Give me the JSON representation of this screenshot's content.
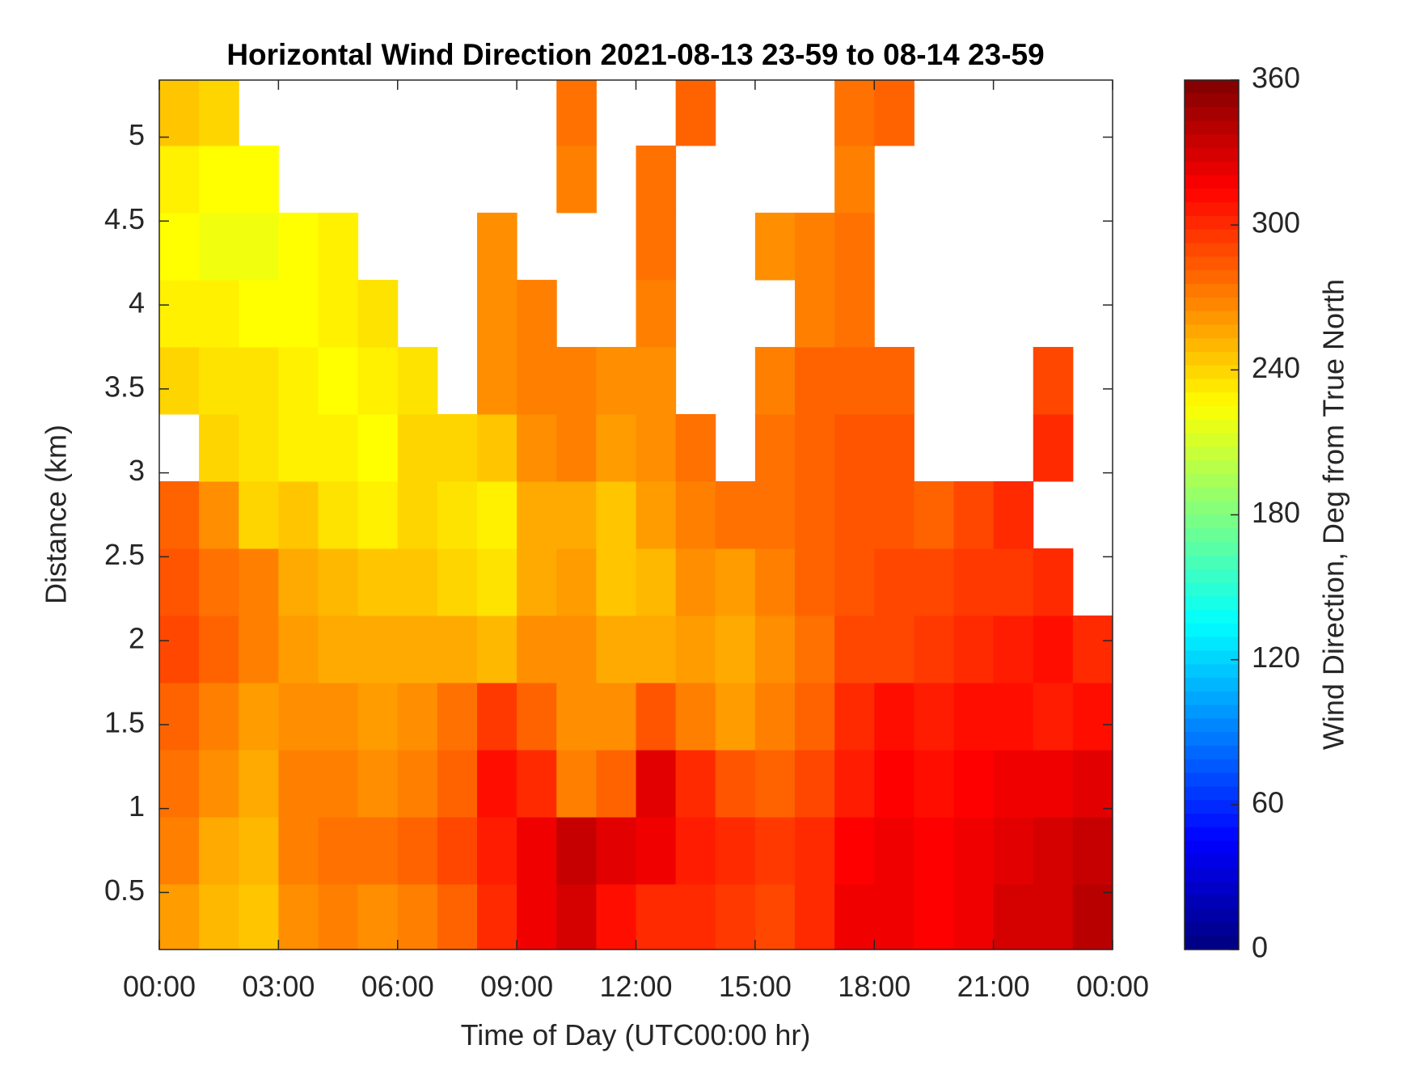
{
  "chart_data": {
    "type": "heatmap",
    "title": "Horizontal Wind Direction 2021-08-13 23-59 to 08-14 23-59",
    "x_label": "Time of Day (UTC00:00 hr)",
    "y_label": "Distance (km)",
    "colorbar_label": "Wind Direction, Deg from True North",
    "colormap": "jet",
    "x": [
      0.5,
      1.5,
      2.5,
      3.5,
      4.5,
      5.5,
      6.5,
      7.5,
      8.5,
      9.5,
      10.5,
      11.5,
      12.5,
      13.5,
      14.5,
      15.5,
      16.5,
      17.5,
      18.5,
      19.5,
      20.5,
      21.5,
      22.5,
      23.5
    ],
    "y": [
      0.35,
      0.75,
      1.15,
      1.55,
      1.95,
      2.35,
      2.75,
      3.15,
      3.55,
      3.95,
      4.35,
      4.75,
      5.15
    ],
    "values": [
      [
        260,
        250,
        245,
        265,
        270,
        265,
        270,
        280,
        300,
        320,
        330,
        310,
        300,
        300,
        295,
        290,
        300,
        320,
        320,
        315,
        320,
        330,
        330,
        340
      ],
      [
        270,
        255,
        250,
        270,
        275,
        275,
        280,
        290,
        305,
        320,
        335,
        325,
        320,
        305,
        300,
        295,
        300,
        315,
        320,
        315,
        320,
        325,
        330,
        335
      ],
      [
        275,
        265,
        255,
        270,
        270,
        265,
        270,
        280,
        310,
        300,
        270,
        280,
        325,
        300,
        285,
        280,
        290,
        305,
        315,
        310,
        315,
        320,
        320,
        325
      ],
      [
        280,
        270,
        260,
        265,
        265,
        260,
        265,
        275,
        295,
        280,
        265,
        265,
        285,
        270,
        260,
        270,
        280,
        300,
        310,
        305,
        310,
        310,
        305,
        310
      ],
      [
        290,
        280,
        270,
        260,
        255,
        255,
        255,
        255,
        250,
        265,
        265,
        255,
        255,
        260,
        255,
        265,
        275,
        290,
        290,
        295,
        300,
        305,
        310,
        300
      ],
      [
        285,
        275,
        270,
        255,
        250,
        245,
        245,
        240,
        235,
        255,
        260,
        245,
        250,
        265,
        260,
        270,
        280,
        285,
        290,
        290,
        295,
        295,
        300,
        null
      ],
      [
        280,
        265,
        240,
        245,
        235,
        230,
        240,
        235,
        230,
        255,
        255,
        245,
        260,
        270,
        275,
        275,
        280,
        285,
        285,
        280,
        290,
        300,
        null,
        null
      ],
      [
        null,
        240,
        235,
        230,
        230,
        225,
        240,
        240,
        245,
        265,
        270,
        260,
        265,
        275,
        null,
        275,
        280,
        285,
        285,
        null,
        null,
        null,
        300,
        null
      ],
      [
        240,
        235,
        235,
        230,
        225,
        230,
        235,
        null,
        265,
        270,
        270,
        265,
        265,
        null,
        null,
        270,
        280,
        280,
        280,
        null,
        null,
        null,
        290,
        null
      ],
      [
        230,
        230,
        225,
        225,
        230,
        235,
        null,
        null,
        265,
        270,
        null,
        null,
        270,
        null,
        null,
        null,
        270,
        275,
        null,
        null,
        null,
        null,
        null,
        null
      ],
      [
        225,
        220,
        220,
        225,
        230,
        null,
        null,
        null,
        265,
        null,
        null,
        null,
        275,
        null,
        null,
        265,
        270,
        275,
        null,
        null,
        null,
        null,
        null,
        null
      ],
      [
        230,
        225,
        225,
        null,
        null,
        null,
        null,
        null,
        null,
        null,
        270,
        null,
        275,
        null,
        null,
        null,
        null,
        270,
        null,
        null,
        null,
        null,
        null,
        null
      ],
      [
        245,
        240,
        null,
        null,
        null,
        null,
        null,
        null,
        null,
        null,
        275,
        null,
        null,
        280,
        null,
        null,
        null,
        275,
        280,
        null,
        null,
        null,
        null,
        null
      ]
    ],
    "xlim": [
      0,
      24
    ],
    "xticks": [
      {
        "value": 0,
        "label": "00:00"
      },
      {
        "value": 3,
        "label": "03:00"
      },
      {
        "value": 6,
        "label": "06:00"
      },
      {
        "value": 9,
        "label": "09:00"
      },
      {
        "value": 12,
        "label": "12:00"
      },
      {
        "value": 15,
        "label": "15:00"
      },
      {
        "value": 18,
        "label": "18:00"
      },
      {
        "value": 21,
        "label": "21:00"
      },
      {
        "value": 24,
        "label": "00:00"
      }
    ],
    "ylim": [
      0.16,
      5.34
    ],
    "yticks": [
      0.5,
      1,
      1.5,
      2,
      2.5,
      3,
      3.5,
      4,
      4.5,
      5
    ],
    "clim": [
      0,
      360
    ],
    "cticks": [
      0,
      60,
      120,
      180,
      240,
      300,
      360
    ]
  }
}
